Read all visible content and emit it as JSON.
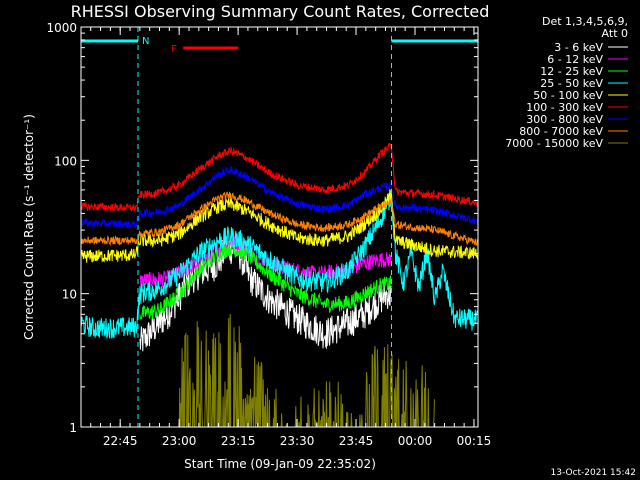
{
  "chart_data": {
    "type": "line",
    "title": "RHESSI Observing Summary Count Rates, Corrected",
    "xlabel": "Start Time (09-Jan-09 22:35:02)",
    "ylabel": "Corrected Count Rate (s⁻¹ detector⁻¹)",
    "yscale": "log",
    "ylim": [
      1,
      1000
    ],
    "xlim_minutes": [
      0,
      101
    ],
    "x_ticks": [
      {
        "label": "22:45",
        "minutes": 9.97
      },
      {
        "label": "23:00",
        "minutes": 24.97
      },
      {
        "label": "23:15",
        "minutes": 39.97
      },
      {
        "label": "23:30",
        "minutes": 54.97
      },
      {
        "label": "23:45",
        "minutes": 69.97
      },
      {
        "label": "00:00",
        "minutes": 84.97
      },
      {
        "label": "00:15",
        "minutes": 99.97
      }
    ],
    "y_ticks": [
      {
        "label": "1",
        "value": 1
      },
      {
        "label": "10",
        "value": 10
      },
      {
        "label": "100",
        "value": 100
      },
      {
        "label": "1000",
        "value": 1000
      }
    ],
    "legend": {
      "header": [
        "Det 1,3,4,5,6,9,",
        "Att 0"
      ],
      "placement": "right"
    },
    "series": [
      {
        "name": "3 - 6 keV",
        "color": "#ffffff",
        "points": [
          [
            15,
            4.2
          ],
          [
            22,
            7
          ],
          [
            28,
            13
          ],
          [
            35,
            17
          ],
          [
            37,
            22
          ],
          [
            40,
            21
          ],
          [
            43,
            13
          ],
          [
            48,
            9
          ],
          [
            55,
            6.5
          ],
          [
            62,
            5
          ],
          [
            68,
            6
          ],
          [
            72,
            7
          ],
          [
            75,
            8.5
          ],
          [
            78,
            10
          ],
          [
            79,
            9.5
          ]
        ]
      },
      {
        "name": "6 - 12 keV",
        "color": "#ff00ff",
        "points": [
          [
            15,
            12.5
          ],
          [
            22,
            13
          ],
          [
            30,
            17
          ],
          [
            35,
            22
          ],
          [
            38,
            24
          ],
          [
            40,
            24
          ],
          [
            45,
            19
          ],
          [
            52,
            15.5
          ],
          [
            60,
            14
          ],
          [
            68,
            15
          ],
          [
            72,
            17
          ],
          [
            76,
            18
          ],
          [
            79,
            18
          ]
        ]
      },
      {
        "name": "12 - 25 keV",
        "color": "#00ff00",
        "points": [
          [
            15,
            7
          ],
          [
            20,
            7.5
          ],
          [
            25,
            10
          ],
          [
            30,
            15
          ],
          [
            35,
            20
          ],
          [
            38,
            22
          ],
          [
            42,
            20
          ],
          [
            48,
            14
          ],
          [
            55,
            10
          ],
          [
            62,
            8.3
          ],
          [
            68,
            8.5
          ],
          [
            72,
            10
          ],
          [
            76,
            11.5
          ],
          [
            79,
            12
          ]
        ]
      },
      {
        "name": "25 - 50 keV",
        "color": "#00ffff",
        "points": [
          [
            0,
            6
          ],
          [
            3,
            5.5
          ],
          [
            14,
            5.6
          ],
          [
            15,
            10
          ],
          [
            20,
            11
          ],
          [
            25,
            14
          ],
          [
            30,
            20
          ],
          [
            35,
            25
          ],
          [
            38,
            27
          ],
          [
            42,
            24
          ],
          [
            48,
            18
          ],
          [
            55,
            13
          ],
          [
            62,
            12
          ],
          [
            68,
            15
          ],
          [
            72,
            22
          ],
          [
            76,
            35
          ],
          [
            79,
            55
          ],
          [
            80,
            20
          ],
          [
            82,
            12
          ],
          [
            84,
            20
          ],
          [
            86,
            11
          ],
          [
            88,
            21
          ],
          [
            90,
            9
          ],
          [
            92,
            15
          ],
          [
            95,
            6.5
          ],
          [
            101,
            6.3
          ]
        ]
      },
      {
        "name": "50 - 100 keV",
        "color": "#ffff00",
        "points": [
          [
            0,
            19
          ],
          [
            14,
            19.5
          ],
          [
            15,
            25
          ],
          [
            20,
            25
          ],
          [
            25,
            28
          ],
          [
            30,
            37
          ],
          [
            35,
            45
          ],
          [
            38,
            47
          ],
          [
            42,
            42
          ],
          [
            48,
            33
          ],
          [
            55,
            26
          ],
          [
            62,
            25
          ],
          [
            68,
            27
          ],
          [
            72,
            33
          ],
          [
            76,
            42
          ],
          [
            79,
            55
          ],
          [
            80,
            25
          ],
          [
            90,
            21
          ],
          [
            101,
            20
          ]
        ]
      },
      {
        "name": "100 - 300 keV",
        "color": "#ff0000",
        "points": [
          [
            0,
            45
          ],
          [
            14,
            44
          ],
          [
            15,
            55
          ],
          [
            20,
            57
          ],
          [
            25,
            65
          ],
          [
            30,
            85
          ],
          [
            35,
            108
          ],
          [
            38,
            118
          ],
          [
            42,
            105
          ],
          [
            48,
            80
          ],
          [
            55,
            65
          ],
          [
            62,
            60
          ],
          [
            68,
            65
          ],
          [
            72,
            80
          ],
          [
            76,
            110
          ],
          [
            79,
            130
          ],
          [
            80,
            58
          ],
          [
            90,
            55
          ],
          [
            101,
            48
          ]
        ]
      },
      {
        "name": "300 - 800 keV",
        "color": "#0000ff",
        "points": [
          [
            0,
            34
          ],
          [
            14,
            33
          ],
          [
            15,
            40
          ],
          [
            20,
            41
          ],
          [
            25,
            46
          ],
          [
            30,
            60
          ],
          [
            35,
            78
          ],
          [
            38,
            85
          ],
          [
            42,
            76
          ],
          [
            48,
            58
          ],
          [
            55,
            47
          ],
          [
            62,
            43
          ],
          [
            68,
            46
          ],
          [
            72,
            55
          ],
          [
            76,
            62
          ],
          [
            79,
            65
          ],
          [
            80,
            45
          ],
          [
            90,
            42
          ],
          [
            101,
            35
          ]
        ]
      },
      {
        "name": "800 - 7000 keV",
        "color": "#ff8000",
        "points": [
          [
            0,
            25
          ],
          [
            14,
            25
          ],
          [
            15,
            28
          ],
          [
            20,
            29
          ],
          [
            25,
            33
          ],
          [
            30,
            42
          ],
          [
            35,
            52
          ],
          [
            38,
            55
          ],
          [
            42,
            50
          ],
          [
            48,
            40
          ],
          [
            55,
            33
          ],
          [
            62,
            31
          ],
          [
            68,
            33
          ],
          [
            72,
            38
          ],
          [
            76,
            45
          ],
          [
            79,
            48
          ],
          [
            80,
            33
          ],
          [
            90,
            30
          ],
          [
            101,
            24
          ]
        ]
      },
      {
        "name": "7000 - 15000 keV",
        "color": "#808000",
        "points": [
          [
            25,
            1.6
          ],
          [
            27,
            2.6
          ],
          [
            30,
            3
          ],
          [
            35,
            3
          ],
          [
            38,
            3.2
          ],
          [
            40,
            3
          ],
          [
            44,
            2
          ],
          [
            46,
            1.5
          ],
          [
            48,
            1
          ],
          [
            72,
            1
          ],
          [
            74,
            2
          ],
          [
            79,
            2
          ],
          [
            85,
            2
          ],
          [
            88,
            1.5
          ],
          [
            90,
            1
          ]
        ]
      }
    ],
    "annotations": [
      {
        "label": "N",
        "color": "#00ffff",
        "kind": "night-interval",
        "minutes": [
          0,
          14.5
        ]
      },
      {
        "label": "N",
        "color": "#00ffff",
        "kind": "night-interval",
        "minutes": [
          79,
          101
        ]
      },
      {
        "label": "F",
        "color": "#ff0000",
        "kind": "flare-interval",
        "minutes": [
          26,
          40
        ]
      }
    ],
    "timestamp": "13-Oct-2021 15:42"
  }
}
